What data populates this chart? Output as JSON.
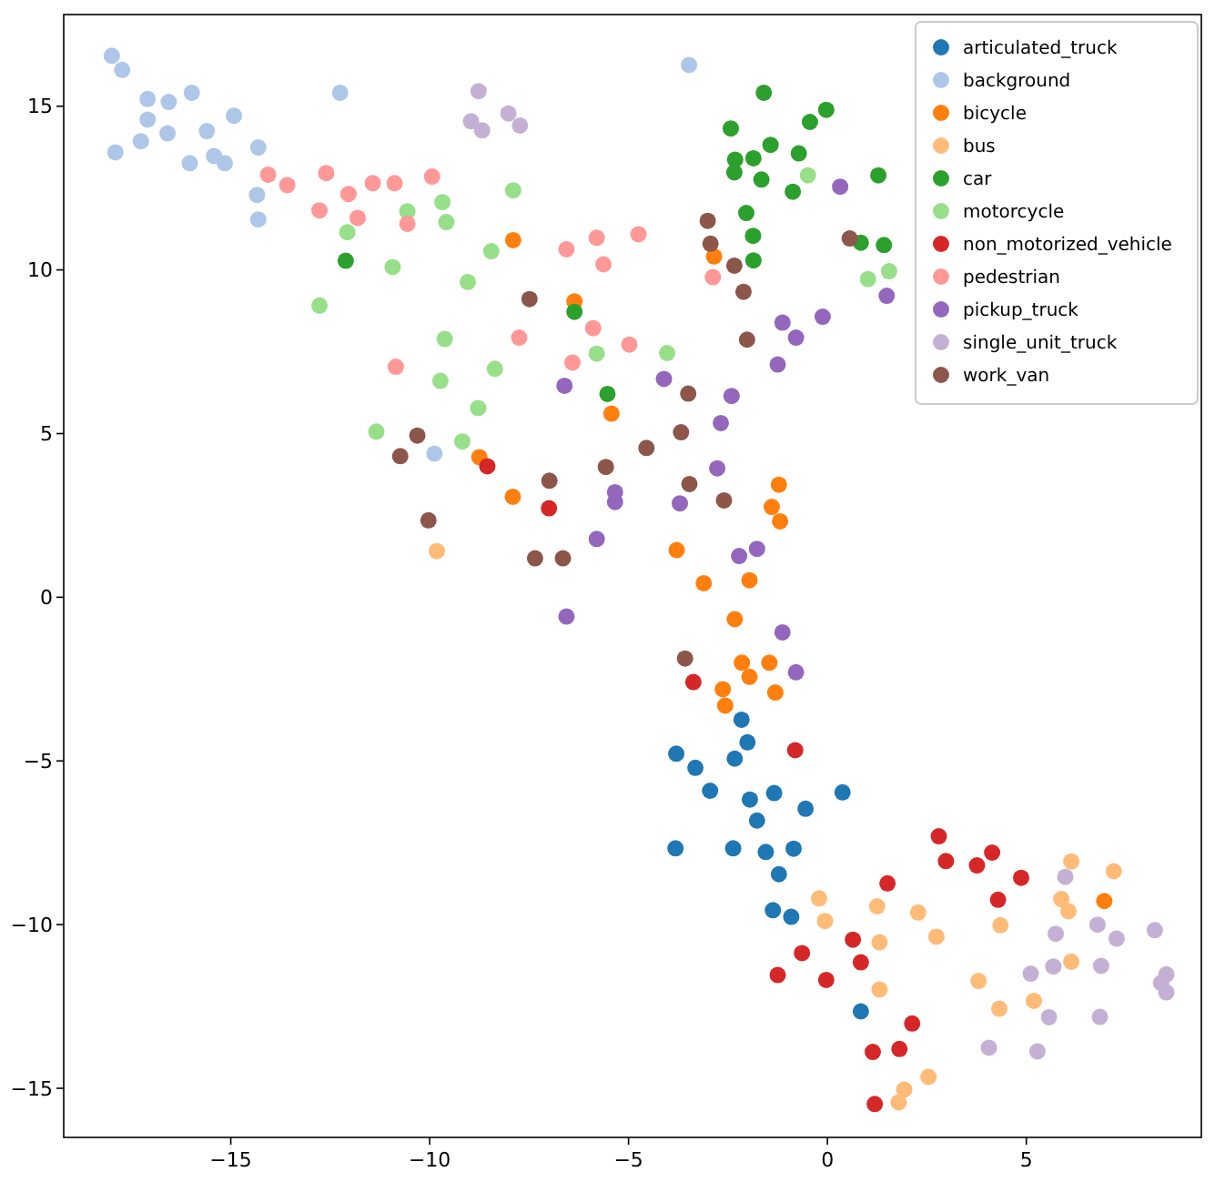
{
  "chart_data": {
    "type": "scatter",
    "xlim": [
      -19.2,
      9.4
    ],
    "ylim": [
      -16.5,
      17.8
    ],
    "xticks": [
      -15,
      -10,
      -5,
      0,
      5
    ],
    "yticks": [
      -15,
      -10,
      -5,
      0,
      5,
      10,
      15
    ],
    "grid": false,
    "legend": "top right",
    "marker": "circle",
    "series": [
      {
        "name": "articulated_truck",
        "color": "#1f77b4",
        "x": [
          -2.16,
          -2.01,
          -3.8,
          -2.33,
          -3.32,
          -2.95,
          -1.95,
          -1.34,
          -1.77,
          -0.55,
          -3.82,
          -2.37,
          -1.55,
          -0.85,
          -1.22,
          -1.37,
          -0.91,
          0.38,
          0.84
        ],
        "values": [
          -3.74,
          -4.43,
          -4.78,
          -4.93,
          -5.21,
          -5.91,
          -6.18,
          -5.98,
          -6.82,
          -6.46,
          -7.67,
          -7.67,
          -7.78,
          -7.68,
          -8.46,
          -9.56,
          -9.76,
          -5.96,
          -12.65
        ]
      },
      {
        "name": "background",
        "color": "#aec7e8",
        "x": [
          -17.99,
          -17.73,
          -17.09,
          -16.56,
          -15.98,
          -17.09,
          -16.59,
          -17.26,
          -17.9,
          -15.6,
          -14.92,
          -16.03,
          -15.42,
          -15.15,
          -14.31,
          -14.34,
          -14.31,
          -12.25,
          -9.88,
          -3.48
        ],
        "values": [
          16.54,
          16.11,
          15.22,
          15.13,
          15.41,
          14.59,
          14.17,
          13.93,
          13.59,
          14.24,
          14.71,
          13.26,
          13.48,
          13.26,
          13.74,
          12.29,
          11.54,
          15.41,
          4.39,
          16.26
        ]
      },
      {
        "name": "bicycle",
        "color": "#ff7f0e",
        "x": [
          -7.9,
          -2.85,
          -6.36,
          -5.43,
          -8.75,
          -7.91,
          -1.22,
          -1.4,
          -1.19,
          -3.79,
          -3.11,
          -1.96,
          -2.33,
          -2.15,
          -1.46,
          -1.96,
          -2.63,
          -1.31,
          -2.57,
          6.96
        ],
        "values": [
          10.91,
          10.41,
          9.04,
          5.61,
          4.28,
          3.07,
          3.44,
          2.76,
          2.32,
          1.44,
          0.43,
          0.52,
          -0.67,
          -2.0,
          -2.0,
          -2.43,
          -2.81,
          -2.91,
          -3.31,
          -9.28
        ]
      },
      {
        "name": "bus",
        "color": "#ffbb78",
        "x": [
          -9.82,
          -0.21,
          -0.06,
          6.13,
          7.2,
          1.25,
          2.28,
          5.88,
          6.06,
          2.74,
          4.35,
          1.31,
          6.13,
          1.31,
          3.8,
          5.19,
          4.32,
          2.54,
          1.93,
          1.79
        ],
        "values": [
          1.41,
          -9.2,
          -9.89,
          -8.07,
          -8.37,
          -9.44,
          -9.63,
          -9.22,
          -9.59,
          -10.37,
          -10.02,
          -10.54,
          -11.13,
          -11.98,
          -11.72,
          -12.33,
          -12.57,
          -14.65,
          -15.04,
          -15.43
        ]
      },
      {
        "name": "car",
        "color": "#2ca02c",
        "x": [
          -12.11,
          -6.36,
          -5.53,
          -1.6,
          -0.03,
          -2.43,
          -0.44,
          -1.43,
          -2.32,
          -1.86,
          -0.72,
          -2.34,
          -1.66,
          -0.87,
          -2.04,
          -1.87,
          -1.86,
          1.28,
          0.84,
          1.42
        ],
        "values": [
          10.28,
          8.72,
          6.21,
          15.41,
          14.89,
          14.32,
          14.52,
          13.82,
          13.37,
          13.41,
          13.56,
          12.98,
          12.76,
          12.39,
          11.74,
          11.04,
          10.29,
          12.89,
          10.83,
          10.76
        ]
      },
      {
        "name": "motorcycle",
        "color": "#98df8a",
        "x": [
          -9.68,
          -9.58,
          -10.56,
          -12.07,
          -10.93,
          -12.77,
          -9.62,
          -9.73,
          -11.34,
          -7.9,
          -8.45,
          -9.04,
          -8.36,
          -8.78,
          -9.18,
          -5.8,
          -4.03,
          -0.49,
          1.02,
          1.55
        ],
        "values": [
          12.07,
          11.46,
          11.79,
          11.15,
          10.09,
          8.91,
          7.89,
          6.61,
          5.06,
          12.43,
          10.57,
          9.63,
          6.98,
          5.78,
          4.76,
          7.44,
          7.46,
          12.89,
          9.72,
          9.96
        ]
      },
      {
        "name": "non_motorized_vehicle",
        "color": "#d62728",
        "x": [
          -8.55,
          -7.0,
          -3.37,
          -0.81,
          -0.64,
          -1.25,
          -0.03,
          2.8,
          2.98,
          4.14,
          3.76,
          4.87,
          1.51,
          4.29,
          0.64,
          0.84,
          2.13,
          1.14,
          1.81,
          1.19
        ],
        "values": [
          4.0,
          2.72,
          -2.59,
          -4.67,
          -10.87,
          -11.54,
          -11.69,
          -7.3,
          -8.06,
          -7.8,
          -8.19,
          -8.57,
          -8.74,
          -9.24,
          -10.46,
          -11.15,
          -13.02,
          -13.89,
          -13.8,
          -15.48
        ]
      },
      {
        "name": "pedestrian",
        "color": "#ff9896",
        "x": [
          -14.06,
          -13.58,
          -12.6,
          -12.04,
          -12.77,
          -11.81,
          -11.43,
          -10.88,
          -9.94,
          -10.56,
          -10.85,
          -6.56,
          -5.8,
          -4.75,
          -5.63,
          -2.88,
          -7.75,
          -5.89,
          -4.98,
          -6.41
        ],
        "values": [
          12.91,
          12.59,
          12.96,
          12.32,
          11.82,
          11.59,
          12.65,
          12.65,
          12.85,
          11.41,
          7.04,
          10.63,
          10.98,
          11.09,
          10.17,
          9.78,
          7.93,
          8.22,
          7.72,
          7.17
        ]
      },
      {
        "name": "pickup_truck",
        "color": "#9467bd",
        "x": [
          0.32,
          1.49,
          -0.12,
          -1.13,
          -0.79,
          -1.25,
          -6.61,
          -4.11,
          -2.41,
          -2.68,
          -2.77,
          -5.34,
          -5.34,
          -3.71,
          -5.8,
          -2.22,
          -1.77,
          -6.56,
          -1.13,
          -0.79
        ],
        "values": [
          12.54,
          9.21,
          8.57,
          8.39,
          7.93,
          7.11,
          6.46,
          6.67,
          6.15,
          5.32,
          3.94,
          3.21,
          2.91,
          2.87,
          1.78,
          1.26,
          1.48,
          -0.59,
          -1.07,
          -2.29
        ]
      },
      {
        "name": "single_unit_truck",
        "color": "#c5b0d5",
        "x": [
          -8.77,
          -8.96,
          -8.68,
          -8.02,
          -7.73,
          5.98,
          5.74,
          6.79,
          7.27,
          8.23,
          5.11,
          5.68,
          6.88,
          8.39,
          8.52,
          8.52,
          5.57,
          6.85,
          4.06,
          5.28
        ],
        "values": [
          15.46,
          14.54,
          14.26,
          14.78,
          14.41,
          -8.54,
          -10.28,
          -10.0,
          -10.43,
          -10.17,
          -11.5,
          -11.28,
          -11.26,
          -11.78,
          -11.52,
          -12.07,
          -12.83,
          -12.82,
          -13.76,
          -13.87
        ]
      },
      {
        "name": "work_van",
        "color": "#8c564b",
        "x": [
          -10.31,
          -10.74,
          -10.03,
          -7.49,
          -3.01,
          -2.94,
          -2.34,
          -2.11,
          -2.02,
          -3.5,
          -3.68,
          -4.55,
          -5.57,
          -6.99,
          -3.47,
          -2.6,
          -7.35,
          -6.65,
          -3.58,
          0.56
        ],
        "values": [
          4.94,
          4.31,
          2.35,
          9.11,
          11.5,
          10.8,
          10.13,
          9.33,
          7.87,
          6.22,
          5.04,
          4.56,
          3.98,
          3.56,
          3.46,
          2.96,
          1.19,
          1.19,
          -1.87,
          10.96
        ]
      }
    ]
  }
}
